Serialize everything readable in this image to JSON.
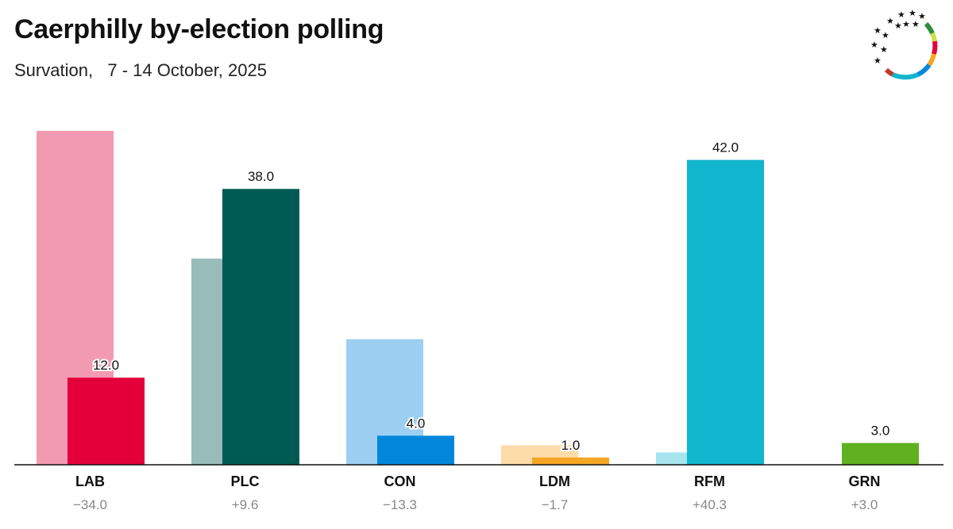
{
  "header": {
    "title": "Caerphilly by-election polling",
    "subtitle": "Survation,   7 - 14 October, 2025"
  },
  "chart_data": {
    "type": "bar",
    "categories": [
      "LAB",
      "PLC",
      "CON",
      "LDM",
      "RFM",
      "GRN"
    ],
    "previous": [
      46.0,
      28.4,
      17.3,
      2.7,
      1.7,
      0.0
    ],
    "current": [
      12.0,
      38.0,
      4.0,
      1.0,
      42.0,
      3.0
    ],
    "current_labels": [
      "12.0",
      "38.0",
      "4.0",
      "1.0",
      "42.0",
      "3.0"
    ],
    "changes": [
      "−34.0",
      "+9.6",
      "−13.3",
      "−1.7",
      "+40.3",
      "+3.0"
    ],
    "colors": {
      "current": [
        "#e4003b",
        "#005b54",
        "#0087dc",
        "#f5a623",
        "#12b6cf",
        "#5fb11f"
      ],
      "previous": [
        "#f29ab1",
        "#98bcba",
        "#9ccff1",
        "#fddcaa",
        "#a6e5ee",
        "#b8dca0"
      ]
    },
    "ylim": [
      0,
      46
    ]
  },
  "logo": {
    "icon": "party-wheel-logo-icon"
  }
}
